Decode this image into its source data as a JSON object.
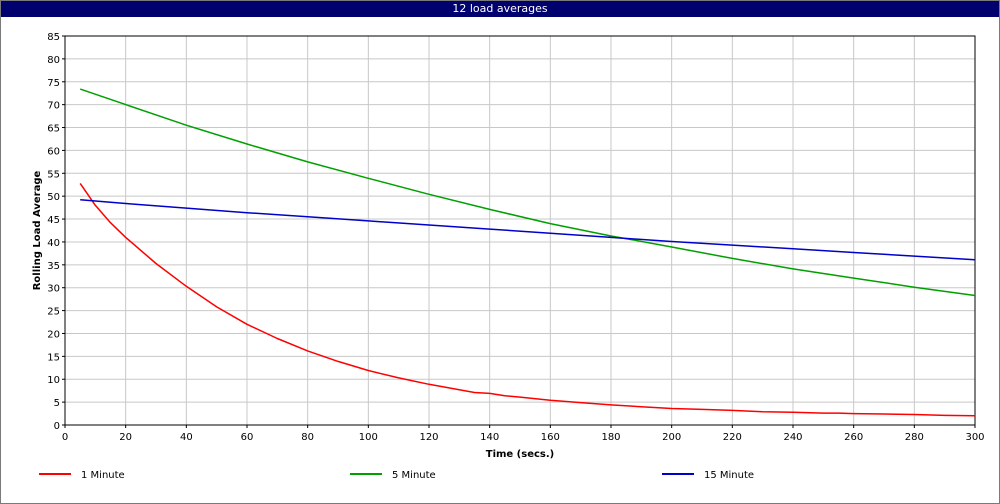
{
  "window": {
    "title": "12 load averages"
  },
  "chart_data": {
    "type": "line",
    "title": "12 load averages",
    "xlabel": "Time (secs.)",
    "ylabel": "Rolling Load Average",
    "xlim": [
      0,
      300
    ],
    "ylim": [
      0,
      85
    ],
    "xticks": [
      0,
      20,
      40,
      60,
      80,
      100,
      120,
      140,
      160,
      180,
      200,
      220,
      240,
      260,
      280,
      300
    ],
    "yticks": [
      0,
      5,
      10,
      15,
      20,
      25,
      30,
      35,
      40,
      45,
      50,
      55,
      60,
      65,
      70,
      75,
      80,
      85
    ],
    "grid": true,
    "legend": "bottom",
    "series": [
      {
        "name": "1 Minute",
        "color": "#ff0000",
        "x": [
          5,
          10,
          15,
          20,
          30,
          40,
          50,
          60,
          70,
          80,
          90,
          100,
          110,
          120,
          130,
          135,
          140,
          145,
          150,
          160,
          170,
          180,
          190,
          200,
          210,
          220,
          230,
          240,
          250,
          255,
          260,
          270,
          280,
          290,
          300
        ],
        "y": [
          52.8,
          48.0,
          44.2,
          41.0,
          35.3,
          30.3,
          25.8,
          22.0,
          18.9,
          16.2,
          13.9,
          11.9,
          10.3,
          8.9,
          7.7,
          7.1,
          6.9,
          6.4,
          6.1,
          5.4,
          4.9,
          4.4,
          4.0,
          3.6,
          3.4,
          3.2,
          2.9,
          2.8,
          2.6,
          2.6,
          2.5,
          2.4,
          2.3,
          2.1,
          2.0
        ]
      },
      {
        "name": "5 Minute",
        "color": "#00a000",
        "x": [
          5,
          20,
          40,
          60,
          80,
          100,
          120,
          140,
          160,
          180,
          187,
          200,
          220,
          240,
          260,
          280,
          300
        ],
        "y": [
          73.4,
          70.0,
          65.5,
          61.4,
          57.5,
          53.9,
          50.4,
          47.1,
          44.0,
          41.3,
          40.5,
          38.9,
          36.4,
          34.1,
          32.1,
          30.1,
          28.3
        ]
      },
      {
        "name": "15 Minute",
        "color": "#0000cc",
        "x": [
          5,
          20,
          40,
          60,
          80,
          100,
          120,
          140,
          160,
          180,
          200,
          220,
          240,
          260,
          280,
          300
        ],
        "y": [
          49.2,
          48.4,
          47.4,
          46.4,
          45.5,
          44.6,
          43.7,
          42.8,
          41.9,
          41.0,
          40.1,
          39.3,
          38.5,
          37.7,
          36.9,
          36.1
        ]
      }
    ]
  }
}
